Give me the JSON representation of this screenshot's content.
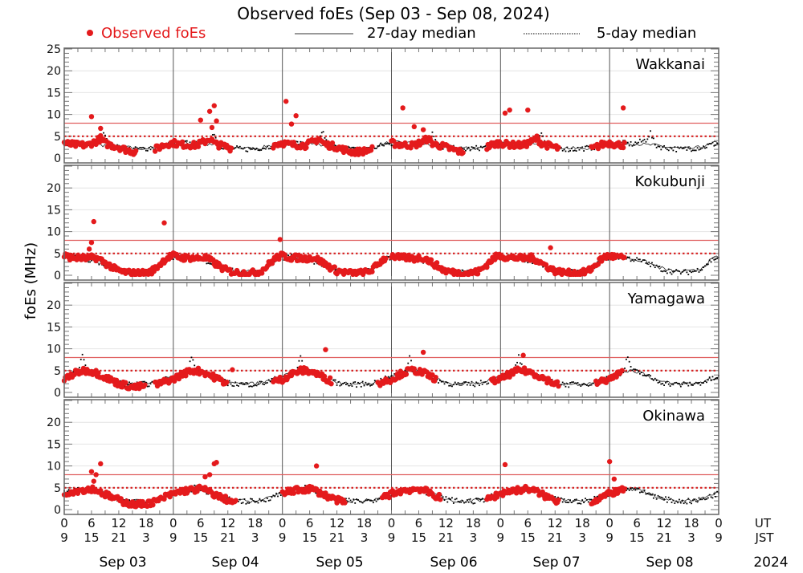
{
  "chart_data": {
    "type": "scatter",
    "title": "Observed foEs (Sep 03 - Sep 08, 2024)",
    "ylabel": "foEs (MHz)",
    "ylim": [
      -1.1,
      25.2
    ],
    "yticks": [
      0,
      5,
      10,
      15,
      20,
      25
    ],
    "x_hours_range": [
      0,
      144
    ],
    "ut_ticks": [
      "0",
      "6",
      "12",
      "18",
      "0",
      "6",
      "12",
      "18",
      "0",
      "6",
      "12",
      "18",
      "0",
      "6",
      "12",
      "18",
      "0",
      "6",
      "12",
      "18",
      "0",
      "6",
      "12",
      "18",
      "0"
    ],
    "jst_ticks": [
      "9",
      "15",
      "21",
      "3",
      "9",
      "15",
      "21",
      "3",
      "9",
      "15",
      "21",
      "3",
      "9",
      "15",
      "21",
      "3",
      "9",
      "15",
      "21",
      "3",
      "9",
      "15",
      "21",
      "3",
      "9"
    ],
    "ut_label": "UT",
    "jst_label": "JST",
    "days": [
      "Sep 03",
      "Sep 04",
      "Sep 05",
      "Sep 06",
      "Sep 07",
      "Sep 08"
    ],
    "year": "2024",
    "legend": {
      "observed": "Observed foEs",
      "median27": "27-day median",
      "median5": "5-day median"
    },
    "colors": {
      "observed": "#e41a1c",
      "median": "#000000",
      "ref": "#d62020"
    },
    "reference_lines": {
      "solid": 8,
      "dotted": 5
    },
    "stations": [
      {
        "name": "Wakkanai",
        "observed_profile": [
          3.5,
          3.2,
          3.1,
          3.0,
          3.0,
          2.9,
          3.4,
          3.8,
          4.5,
          3.4,
          3.0,
          2.8,
          2.5,
          2.1,
          1.8,
          1.5,
          1.4,
          1.5,
          1.6,
          1.8,
          2.0,
          2.5,
          3.0,
          3.3
        ],
        "observed_ranges": [
          [
            [
              0,
              16
            ],
            [
              20,
              24
            ]
          ],
          [
            [
              0,
              13
            ],
            [
              22,
              24
            ]
          ],
          [
            [
              0,
              20
            ]
          ],
          [
            [
              0,
              16
            ],
            [
              21,
              24
            ]
          ],
          [
            [
              0,
              13
            ],
            [
              20,
              24
            ]
          ],
          [
            [
              0,
              3.5
            ]
          ]
        ],
        "median27": [
          3.5,
          3.5,
          3.5,
          3.5,
          3.4,
          3.3,
          3.3,
          3.2,
          3.0,
          3.0,
          2.9,
          2.8,
          2.6,
          2.5,
          2.4,
          2.3,
          2.2,
          2.2,
          2.2,
          2.3,
          2.5,
          2.8,
          3.1,
          3.4
        ],
        "median5": [
          3.3,
          3.4,
          3.2,
          3.5,
          3.3,
          3.2,
          3.5,
          3.8,
          4.2,
          5.8,
          3.0,
          2.6,
          2.4,
          2.3,
          2.2,
          2.0,
          2.0,
          2.1,
          2.2,
          2.3,
          2.4,
          2.6,
          3.0,
          3.2
        ],
        "outliers": [
          [
            0,
            6,
            9.5
          ],
          [
            0,
            8,
            6.8
          ],
          [
            1,
            6,
            8.7
          ],
          [
            1,
            8,
            10.7
          ],
          [
            1,
            8.5,
            7.0
          ],
          [
            1,
            9,
            12.0
          ],
          [
            1,
            9.5,
            8.5
          ],
          [
            2,
            0.8,
            13.0
          ],
          [
            2,
            2,
            7.8
          ],
          [
            2,
            3,
            9.7
          ],
          [
            3,
            2.5,
            11.5
          ],
          [
            3,
            5,
            7.2
          ],
          [
            3,
            7,
            6.5
          ],
          [
            4,
            1,
            10.3
          ],
          [
            4,
            2,
            11.0
          ],
          [
            4,
            6,
            11.0
          ],
          [
            5,
            3,
            11.5
          ]
        ]
      },
      {
        "name": "Kokubunji",
        "observed_profile": [
          4.5,
          4.2,
          4.0,
          4.0,
          4.0,
          3.8,
          4.0,
          4.0,
          3.5,
          2.8,
          2.2,
          1.5,
          1.0,
          0.8,
          0.6,
          0.5,
          0.5,
          0.5,
          0.6,
          0.8,
          1.5,
          2.5,
          3.5,
          4.2
        ],
        "observed_ranges": [
          [
            [
              0,
              24
            ]
          ],
          [
            [
              0,
              24
            ]
          ],
          [
            [
              0,
              23
            ]
          ],
          [
            [
              0,
              24
            ]
          ],
          [
            [
              0,
              24
            ]
          ],
          [
            [
              0,
              3.5
            ]
          ]
        ],
        "median27": [
          4.2,
          4.3,
          4.3,
          4.2,
          4.0,
          3.8,
          3.6,
          3.3,
          3.0,
          2.6,
          2.2,
          1.8,
          1.4,
          1.1,
          0.9,
          0.8,
          0.8,
          0.8,
          0.9,
          1.1,
          1.6,
          2.4,
          3.2,
          3.9
        ],
        "median5": [
          4.0,
          4.1,
          4.2,
          4.1,
          3.9,
          3.7,
          3.5,
          3.2,
          2.9,
          2.5,
          2.0,
          1.6,
          1.2,
          1.0,
          0.8,
          0.7,
          0.7,
          0.7,
          0.8,
          1.0,
          1.5,
          2.3,
          3.1,
          3.8
        ],
        "outliers": [
          [
            0,
            6,
            7.5
          ],
          [
            0,
            6.5,
            12.3
          ],
          [
            0,
            5.5,
            6.0
          ],
          [
            0,
            22,
            12.0
          ],
          [
            1,
            23.5,
            8.2
          ],
          [
            4,
            11,
            6.3
          ]
        ]
      },
      {
        "name": "Yamagawa",
        "observed_profile": [
          3.0,
          3.6,
          4.2,
          4.6,
          5.0,
          5.0,
          4.8,
          4.5,
          4.0,
          3.5,
          3.0,
          2.5,
          2.0,
          1.8,
          1.5,
          1.2,
          1.2,
          1.4,
          1.6,
          1.8,
          1.8,
          2.0,
          2.4,
          2.8
        ],
        "observed_ranges": [
          [
            [
              0,
              18
            ],
            [
              20,
              24
            ]
          ],
          [
            [
              0,
              12
            ],
            [
              22,
              24
            ]
          ],
          [
            [
              0,
              11
            ],
            [
              21,
              24
            ]
          ],
          [
            [
              0,
              10
            ],
            [
              22,
              24
            ]
          ],
          [
            [
              0,
              13
            ],
            [
              21,
              24
            ]
          ],
          [
            [
              0,
              3
            ]
          ]
        ],
        "median27": [
          3.5,
          4.0,
          4.4,
          4.8,
          5.0,
          5.0,
          4.8,
          4.5,
          4.0,
          3.5,
          3.0,
          2.6,
          2.3,
          2.1,
          2.0,
          2.0,
          2.0,
          2.0,
          2.0,
          2.1,
          2.3,
          2.6,
          3.0,
          3.3
        ],
        "median5": [
          3.4,
          3.9,
          4.3,
          4.7,
          8.2,
          4.9,
          4.7,
          4.4,
          3.9,
          3.4,
          2.9,
          2.5,
          2.2,
          2.0,
          1.9,
          1.8,
          1.8,
          1.9,
          1.9,
          2.0,
          2.2,
          2.5,
          2.9,
          3.2
        ],
        "outliers": [
          [
            2,
            9.5,
            9.8
          ],
          [
            3,
            7,
            9.2
          ],
          [
            4,
            5,
            8.5
          ],
          [
            1,
            13,
            5.2
          ]
        ]
      },
      {
        "name": "Okinawa",
        "observed_profile": [
          3.6,
          4.0,
          4.2,
          4.4,
          4.5,
          4.6,
          4.8,
          4.5,
          4.0,
          3.5,
          3.0,
          2.6,
          2.2,
          1.8,
          1.5,
          1.2,
          1.2,
          1.2,
          1.4,
          1.6,
          1.8,
          2.2,
          2.8,
          3.2
        ],
        "observed_ranges": [
          [
            [
              0,
              24
            ]
          ],
          [
            [
              0,
              14
            ]
          ],
          [
            [
              0,
              14
            ],
            [
              22,
              24
            ]
          ],
          [
            [
              0,
              11
            ],
            [
              21,
              24
            ]
          ],
          [
            [
              0,
              13
            ],
            [
              20,
              24
            ]
          ],
          [
            [
              0,
              3.5
            ]
          ]
        ],
        "median27": [
          3.8,
          4.1,
          4.3,
          4.5,
          4.6,
          4.6,
          4.5,
          4.3,
          4.0,
          3.6,
          3.2,
          2.8,
          2.5,
          2.3,
          2.1,
          2.0,
          2.0,
          2.0,
          2.0,
          2.1,
          2.3,
          2.7,
          3.1,
          3.5
        ],
        "median5": [
          3.7,
          4.0,
          4.2,
          4.4,
          4.6,
          5.2,
          4.4,
          4.2,
          3.9,
          3.5,
          3.1,
          2.7,
          2.4,
          2.2,
          2.0,
          1.9,
          1.9,
          1.9,
          1.9,
          2.0,
          2.2,
          2.6,
          3.0,
          3.4
        ],
        "outliers": [
          [
            0,
            6,
            8.7
          ],
          [
            0,
            7,
            8.0
          ],
          [
            0,
            8,
            10.5
          ],
          [
            0,
            6.5,
            6.5
          ],
          [
            1,
            7,
            7.5
          ],
          [
            1,
            8,
            8.0
          ],
          [
            1,
            9,
            10.5
          ],
          [
            1,
            9.5,
            10.8
          ],
          [
            2,
            7.5,
            10.0
          ],
          [
            4,
            1,
            10.3
          ],
          [
            5,
            0,
            11.0
          ],
          [
            5,
            1,
            7.0
          ]
        ]
      }
    ]
  }
}
